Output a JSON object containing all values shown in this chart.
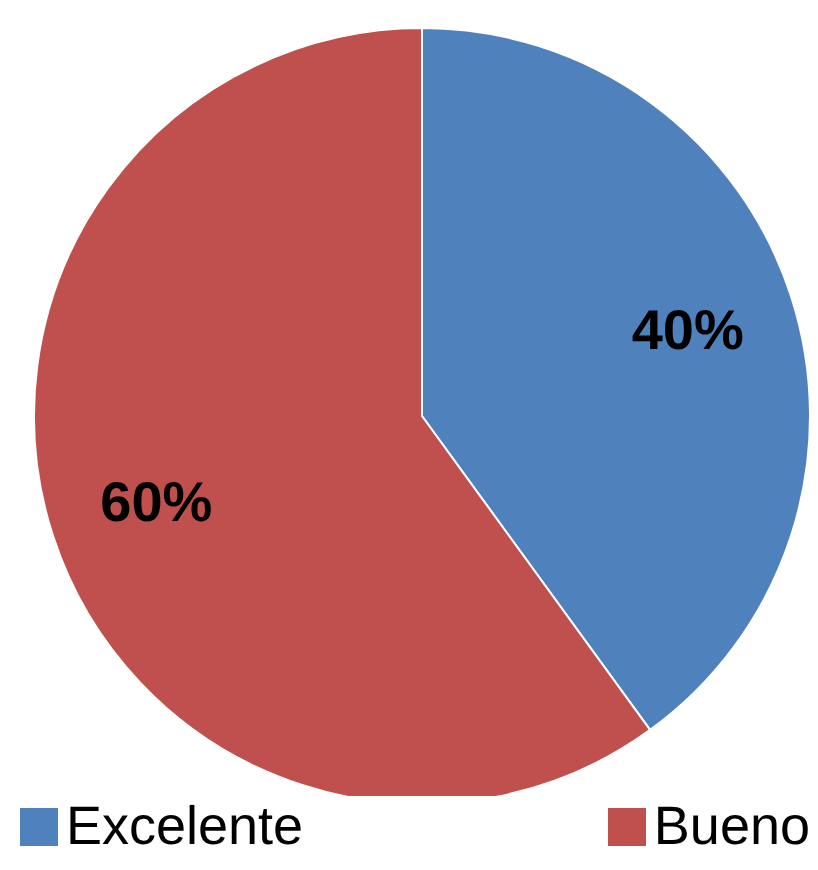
{
  "chart_data": {
    "type": "pie",
    "categories": [
      "Excelente",
      "Bueno"
    ],
    "values": [
      40,
      60
    ],
    "value_labels": [
      "40%",
      "60%"
    ],
    "colors": [
      "#4f81bd",
      "#c0504d"
    ],
    "legend": "bottom"
  }
}
